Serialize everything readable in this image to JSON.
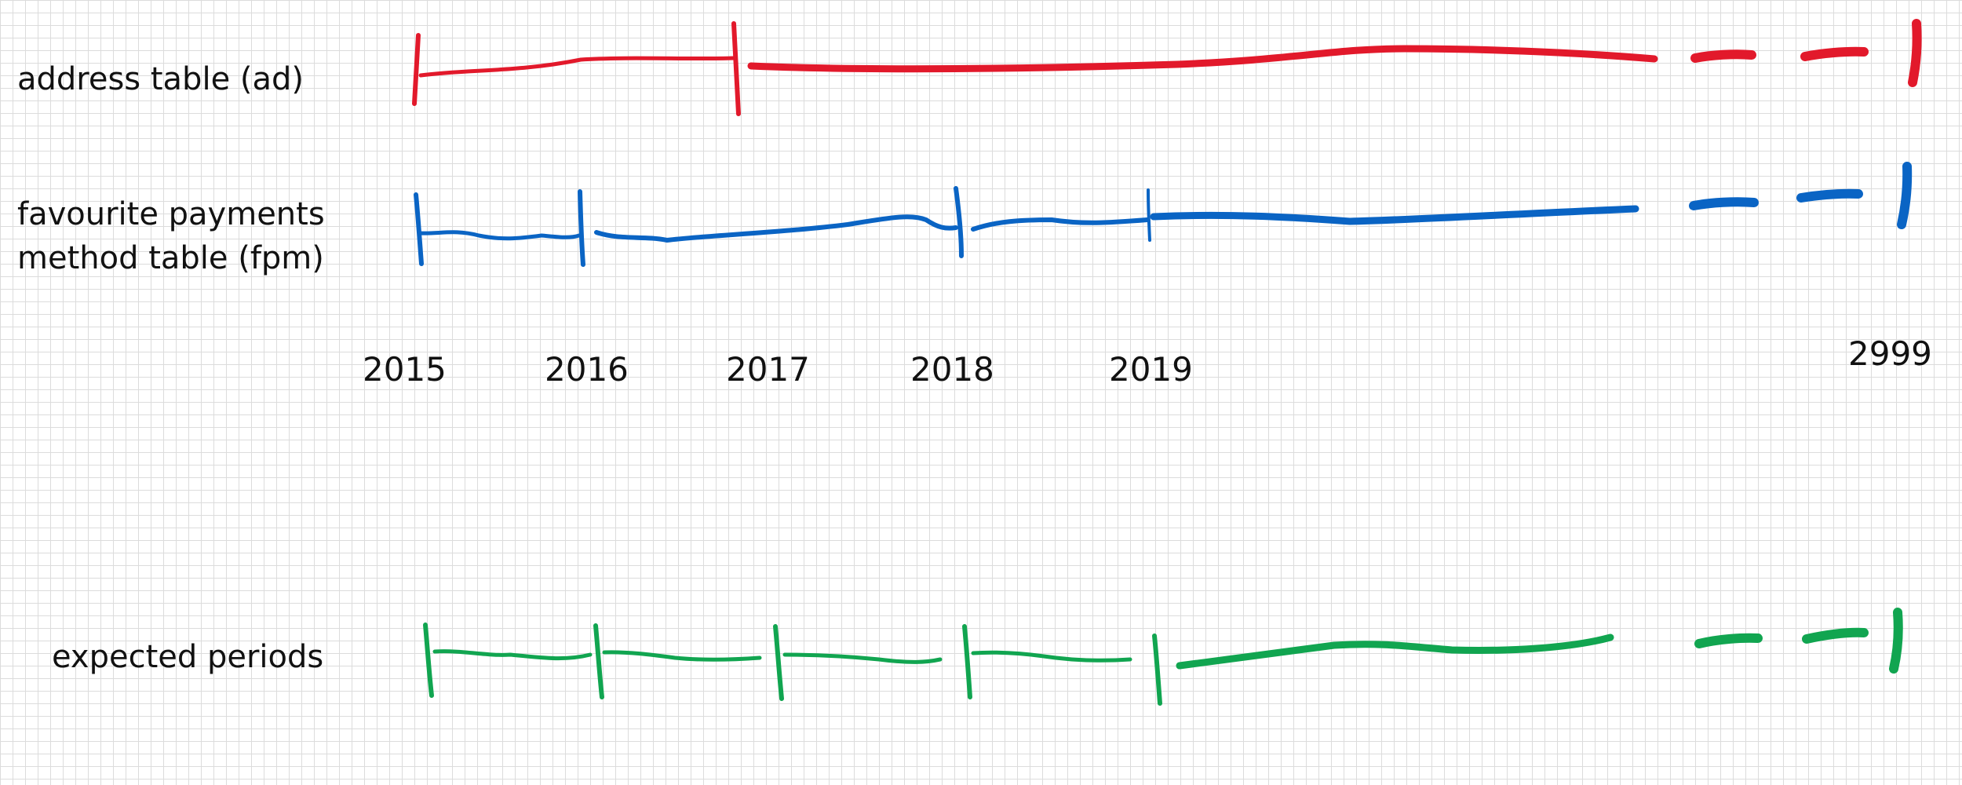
{
  "timelines": [
    {
      "id": "ad",
      "label_lines": [
        "address table (ad)"
      ],
      "color": "#e2192b",
      "boundaries": [
        2015,
        2017,
        2999
      ]
    },
    {
      "id": "fpm",
      "label_lines": [
        "favourite payments",
        "method table (fpm)"
      ],
      "color": "#0a64c4",
      "boundaries": [
        2015,
        2016,
        2018,
        2019,
        2999
      ]
    },
    {
      "id": "expected",
      "label_lines": [
        "expected periods"
      ],
      "color": "#11a550",
      "boundaries": [
        2015,
        2016,
        2017,
        2018,
        2019,
        2999
      ]
    }
  ],
  "year_labels": [
    "2015",
    "2016",
    "2017",
    "2018",
    "2019",
    "2999"
  ]
}
